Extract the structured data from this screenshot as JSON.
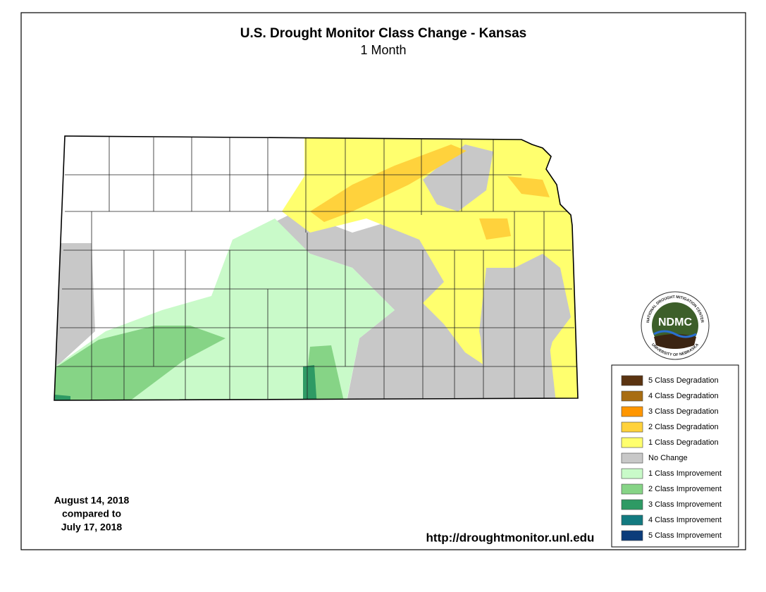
{
  "title": "U.S. Drought Monitor Class Change - Kansas",
  "subtitle": "1 Month",
  "legend": [
    {
      "label": "5 Class Degradation",
      "color": "#5b3411"
    },
    {
      "label": "4 Class Degradation",
      "color": "#a86d12"
    },
    {
      "label": "3 Class Degradation",
      "color": "#ff9600"
    },
    {
      "label": "2 Class Degradation",
      "color": "#ffd23c"
    },
    {
      "label": "1 Class Degradation",
      "color": "#ffff6e"
    },
    {
      "label": "No Change",
      "color": "#c8c8c8"
    },
    {
      "label": "1 Class Improvement",
      "color": "#c9fac9"
    },
    {
      "label": "2 Class Improvement",
      "color": "#86d486"
    },
    {
      "label": "3 Class Improvement",
      "color": "#2e9a64"
    },
    {
      "label": "4 Class Improvement",
      "color": "#137a80"
    },
    {
      "label": "5 Class Improvement",
      "color": "#0b3c7a"
    }
  ],
  "dates": [
    "August 14, 2018",
    "compared to",
    "July 17, 2018"
  ],
  "url": "http://droughtmonitor.unl.edu",
  "logo": {
    "text": "NDMC",
    "ring_top": "NATIONAL DROUGHT MITIGATION CENTER",
    "ring_bottom": "UNIVERSITY OF NEBRASKA"
  }
}
